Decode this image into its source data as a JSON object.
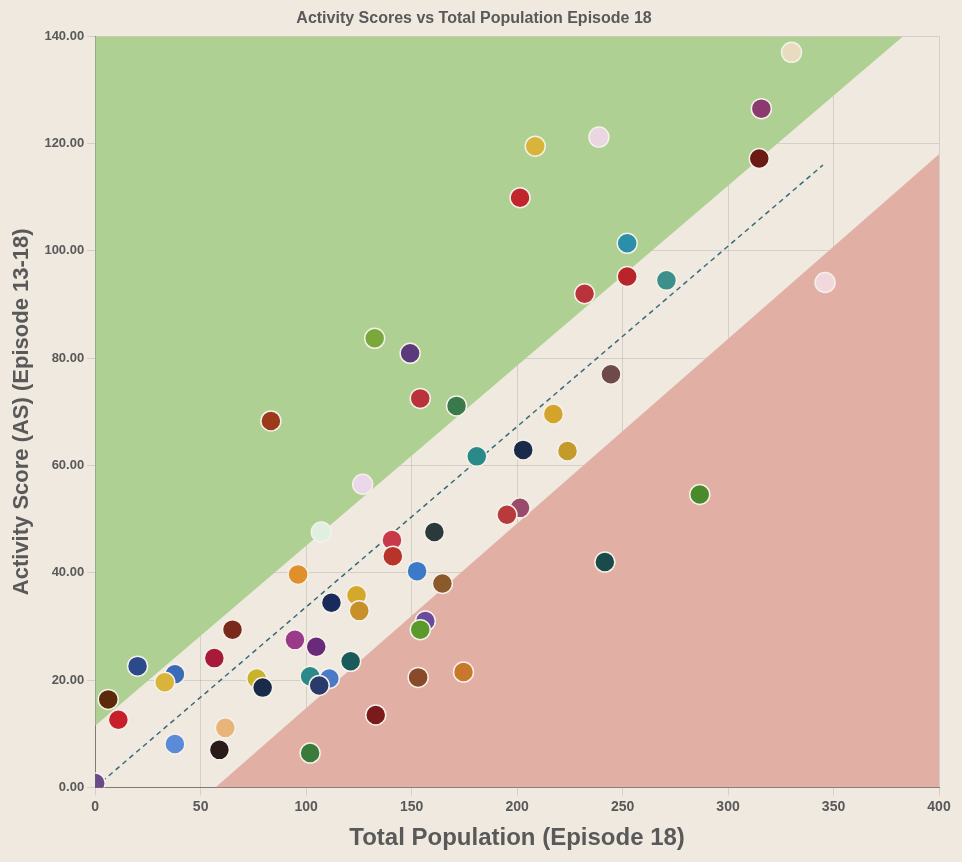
{
  "chart_data": {
    "type": "scatter",
    "title": "Activity Scores vs Total Population Episode 18",
    "x_label": "Total Population (Episode 18)",
    "y_label": "Activity Score (AS) (Episode 13-18)",
    "x": [
      330.1,
      315.8,
      314.8,
      208.6,
      238.8,
      201.4,
      252.2,
      252.2,
      270.8,
      346.0,
      232.0,
      132.5,
      149.3,
      244.5,
      154.1,
      171.3,
      217.2,
      83.3,
      180.9,
      202.9,
      223.9,
      126.8,
      286.6,
      107.2,
      160.8,
      201.4,
      195.2,
      140.7,
      141.1,
      241.6,
      152.6,
      96.2,
      164.6,
      123.9,
      112.0,
      125.2,
      156.5,
      154.1,
      65.1,
      94.7,
      104.8,
      56.5,
      121.1,
      20.1,
      37.8,
      174.6,
      153.1,
      101.9,
      111.0,
      76.6,
      33.0,
      79.4,
      106.2,
      6.2,
      11.0,
      61.7,
      133.0,
      37.8,
      58.9,
      101.9,
      0.0
    ],
    "values": [
      137.0,
      126.5,
      117.2,
      119.5,
      121.2,
      109.9,
      101.4,
      95.2,
      94.5,
      94.1,
      92.0,
      83.7,
      80.9,
      77.0,
      72.5,
      71.1,
      69.6,
      68.3,
      61.7,
      62.9,
      62.7,
      56.5,
      54.6,
      47.6,
      47.6,
      52.1,
      50.8,
      46.1,
      43.1,
      42.0,
      40.3,
      39.7,
      38.0,
      35.8,
      34.4,
      32.9,
      31.0,
      29.4,
      29.4,
      27.5,
      26.2,
      24.1,
      23.5,
      22.6,
      21.1,
      21.5,
      20.5,
      20.7,
      20.3,
      20.3,
      19.6,
      18.6,
      19.0,
      16.4,
      12.6,
      11.1,
      13.5,
      8.1,
      7.0,
      6.4,
      0.8
    ],
    "colors": [
      "#e8dcc0",
      "#8a3a6e",
      "#6b1a14",
      "#d9b43a",
      "#e9d6e0",
      "#c0262b",
      "#2a8fa8",
      "#b8242a",
      "#3c8f8a",
      "#f0d8dc",
      "#b8343a",
      "#7aa83a",
      "#5a3a7a",
      "#6e4a4a",
      "#b8343a",
      "#3a7a4a",
      "#d4a42a",
      "#9a3a1a",
      "#2a8a8a",
      "#1a2a4a",
      "#c49a2a",
      "#ead8ea",
      "#4a8a2a",
      "#e0f0e0",
      "#2a3a3a",
      "#9a4a6a",
      "#b83a3a",
      "#c83a4a",
      "#b8342a",
      "#1a4a4a",
      "#3a7ac8",
      "#e0902a",
      "#8a5a2a",
      "#d4a82a",
      "#1a2a5a",
      "#c8902a",
      "#6a4a9a",
      "#5a9a2a",
      "#7a2a1a",
      "#9a3a8a",
      "#6a2a7a",
      "#a81a3a",
      "#1a5a5a",
      "#2a4a8a",
      "#3a6ab8",
      "#c8782a",
      "#8a4a2a",
      "#2a8a8a",
      "#4a7ac8",
      "#c8b42a",
      "#d8b43a",
      "#1a2a4a",
      "#2a3a6a",
      "#5a2a0a",
      "#c8202a",
      "#e8b47a",
      "#7a1a1a",
      "#5a8ad8",
      "#2a1a1a",
      "#3a7a3a",
      "#6a4a8a"
    ],
    "marker": "circle",
    "xlim": [
      0,
      400
    ],
    "ylim": [
      0,
      140
    ],
    "xticks": [
      0,
      50,
      100,
      150,
      200,
      250,
      300,
      350,
      400
    ],
    "yticks": [
      {
        "value": 0,
        "label": "0.00"
      },
      {
        "value": 20,
        "label": "20.00"
      },
      {
        "value": 40,
        "label": "40.00"
      },
      {
        "value": 60,
        "label": "60.00"
      },
      {
        "value": 80,
        "label": "80.00"
      },
      {
        "value": 100,
        "label": "100.00"
      },
      {
        "value": 120,
        "label": "120.00"
      },
      {
        "value": 140,
        "label": "140.00"
      }
    ],
    "grid": true,
    "trend_line": {
      "x": [
        0,
        345
      ],
      "y": [
        0,
        116
      ],
      "color": "#3a6a7a",
      "line_style": "dashed"
    },
    "upper_band": {
      "x": [
        0,
        383
      ],
      "y": [
        11.5,
        140
      ],
      "color": "#aed092"
    },
    "lower_band": {
      "x": [
        57,
        400
      ],
      "y": [
        0,
        118
      ],
      "color": "#e2afa5"
    }
  }
}
